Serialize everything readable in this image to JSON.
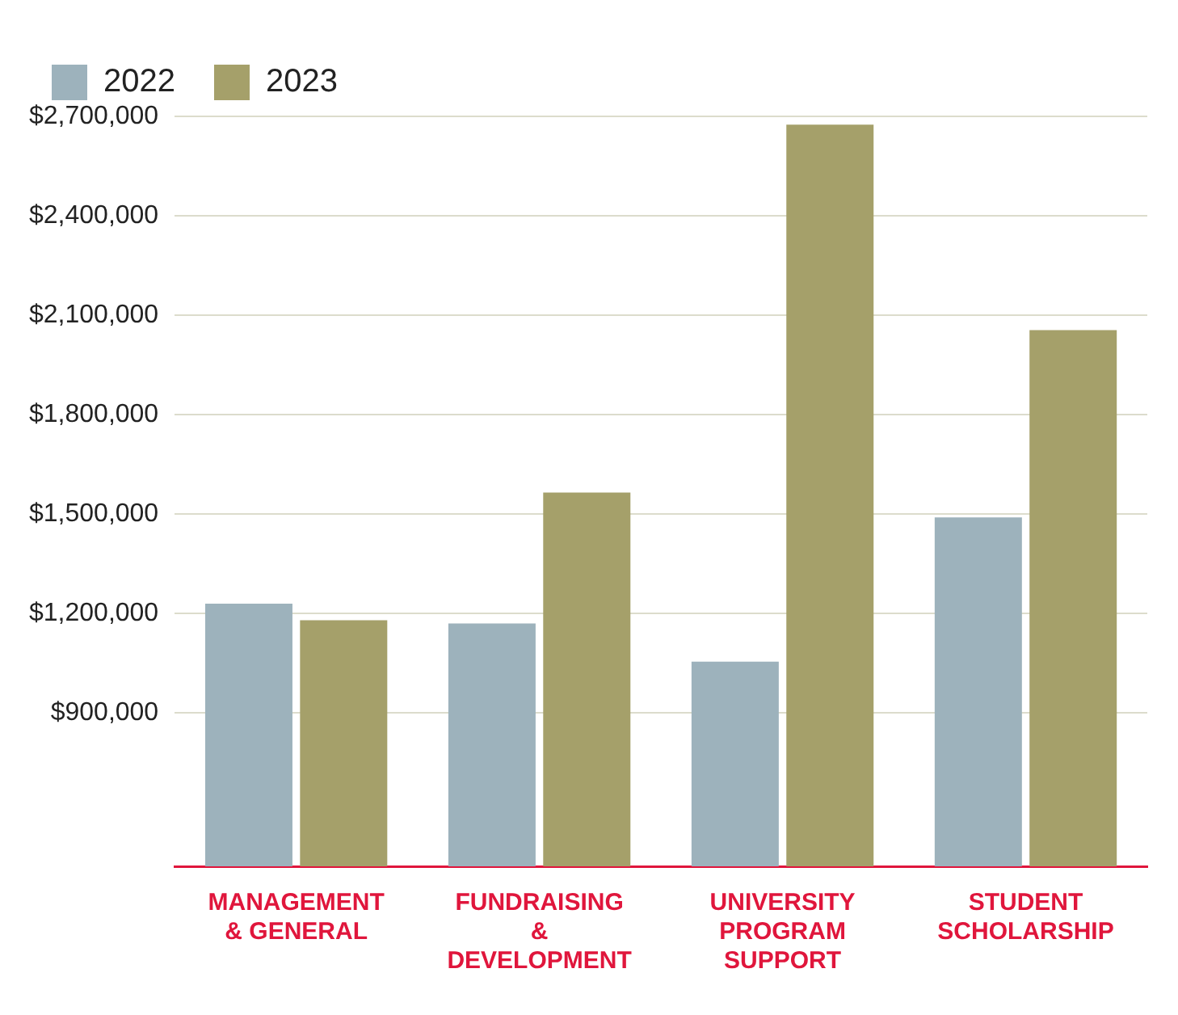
{
  "chart_data": {
    "type": "bar",
    "categories": [
      "MANAGEMENT & GENERAL",
      "FUNDRAISING & DEVELOPMENT",
      "UNIVERSITY PROGRAM SUPPORT",
      "STUDENT SCHOLARSHIP"
    ],
    "series": [
      {
        "name": "2022",
        "color": "#9db2bc",
        "values": [
          1230000,
          1170000,
          1055000,
          1490000
        ]
      },
      {
        "name": "2023",
        "color": "#a5a06a",
        "values": [
          1180000,
          1565000,
          2675000,
          2055000
        ]
      }
    ],
    "ylim": [
      437500,
      2700000
    ],
    "yticks": [
      {
        "value": 900000,
        "label": "$900,000"
      },
      {
        "value": 1200000,
        "label": "$1,200,000"
      },
      {
        "value": 1500000,
        "label": "$1,500,000"
      },
      {
        "value": 1800000,
        "label": "$1,800,000"
      },
      {
        "value": 2100000,
        "label": "$2,100,000"
      },
      {
        "value": 2400000,
        "label": "$2,400,000"
      },
      {
        "value": 2700000,
        "label": "$2,700,000"
      }
    ],
    "grid": "y",
    "legend": "top left"
  }
}
